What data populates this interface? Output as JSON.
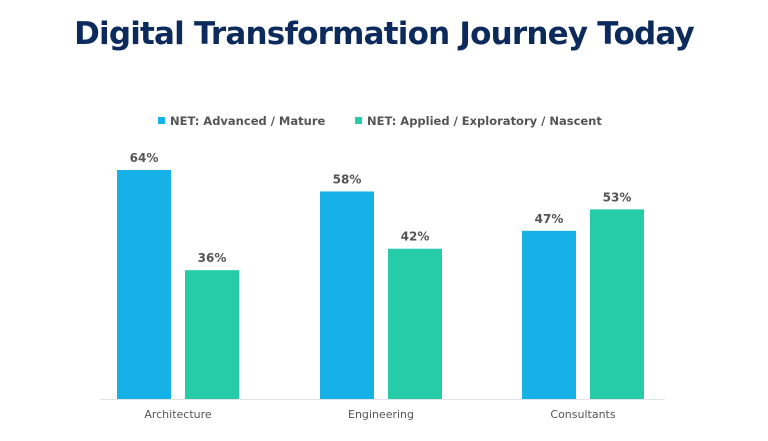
{
  "chart_data": {
    "type": "bar",
    "title": "Digital Transformation Journey Today",
    "categories": [
      "Architecture",
      "Engineering",
      "Consultants"
    ],
    "series": [
      {
        "name": "NET: Advanced / Mature",
        "values": [
          64,
          58,
          47
        ],
        "color": "#16b1e6",
        "labels": [
          "64%",
          "58%",
          "47%"
        ]
      },
      {
        "name": "NET: Applied / Exploratory / Nascent",
        "values": [
          36,
          42,
          53
        ],
        "color": "#26cca8",
        "labels": [
          "36%",
          "42%",
          "53%"
        ]
      }
    ],
    "ylim": [
      0,
      64
    ],
    "grid": false,
    "legend": "top",
    "title_color": "#0c2a5b"
  }
}
